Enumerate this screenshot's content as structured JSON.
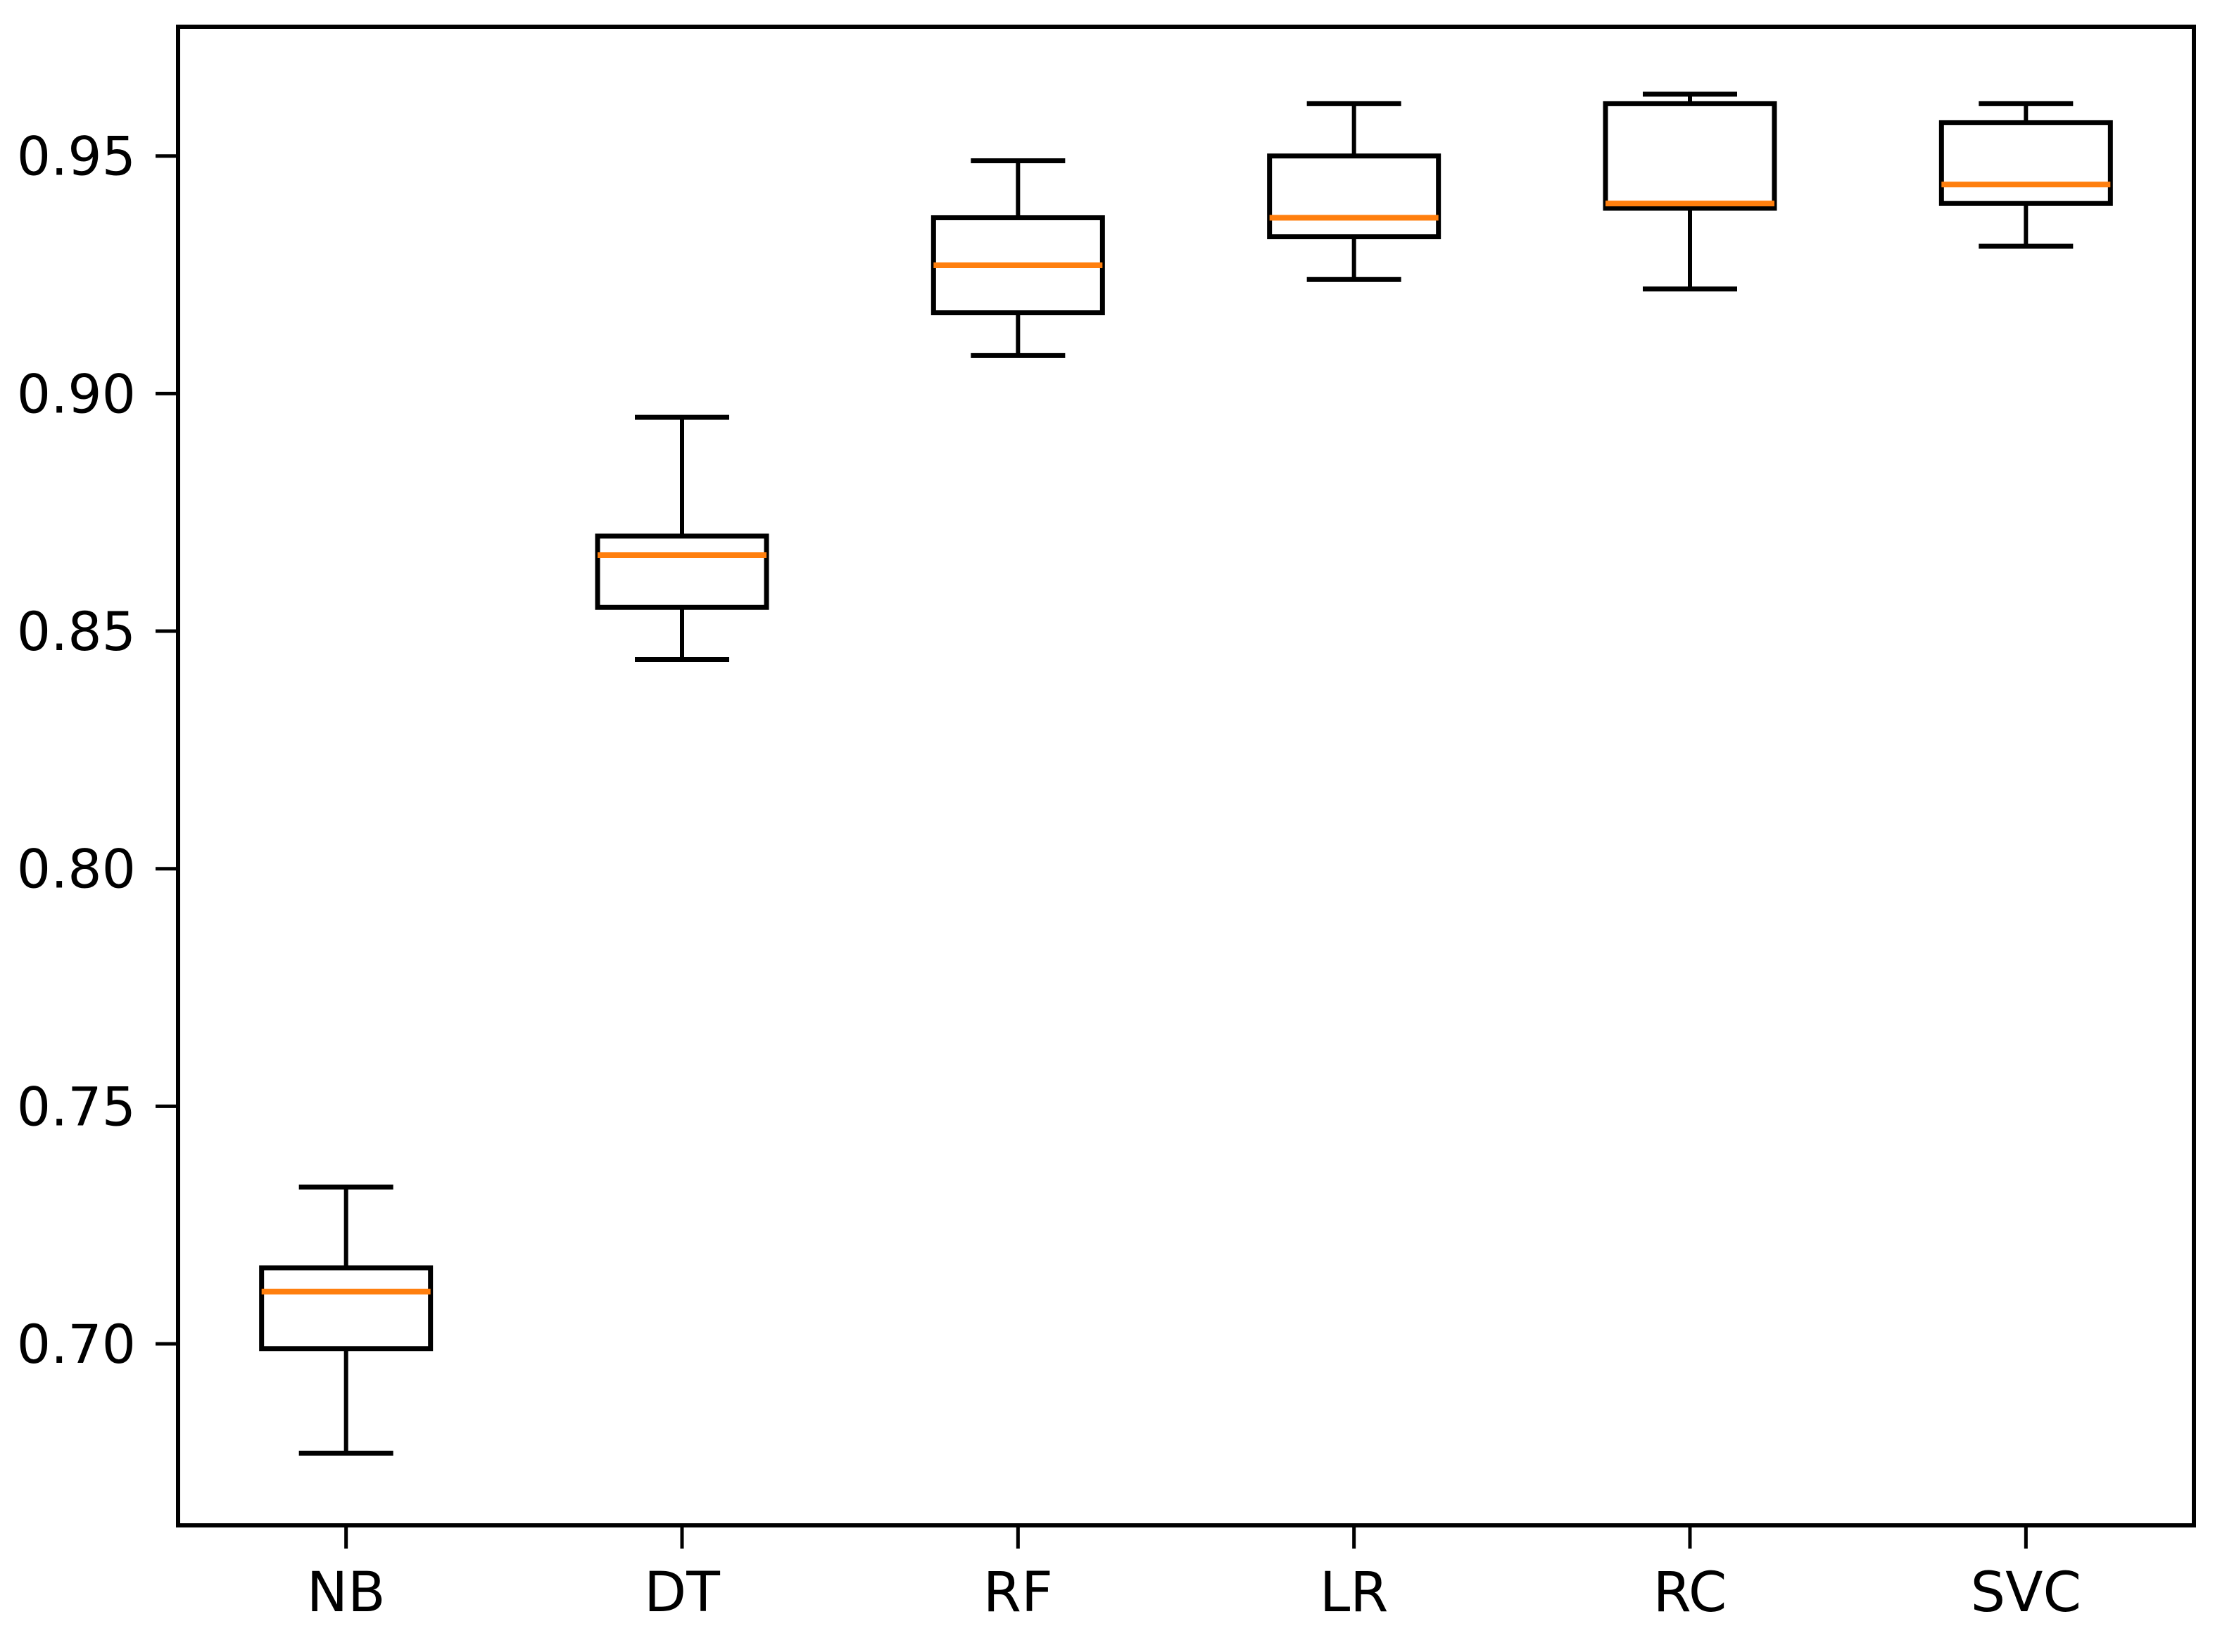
{
  "chart_data": {
    "type": "box",
    "title": "",
    "xlabel": "",
    "ylabel": "",
    "categories": [
      "NB",
      "DT",
      "RF",
      "LR",
      "RC",
      "SVC"
    ],
    "series": [
      {
        "label": "NB",
        "whislo": 0.677,
        "q1": 0.699,
        "med": 0.711,
        "q3": 0.716,
        "whishi": 0.733,
        "fliers": []
      },
      {
        "label": "DT",
        "whislo": 0.844,
        "q1": 0.855,
        "med": 0.866,
        "q3": 0.87,
        "whishi": 0.895,
        "fliers": []
      },
      {
        "label": "RF",
        "whislo": 0.908,
        "q1": 0.917,
        "med": 0.927,
        "q3": 0.937,
        "whishi": 0.949,
        "fliers": []
      },
      {
        "label": "LR",
        "whislo": 0.924,
        "q1": 0.933,
        "med": 0.937,
        "q3": 0.95,
        "whishi": 0.961,
        "fliers": []
      },
      {
        "label": "RC",
        "whislo": 0.922,
        "q1": 0.939,
        "med": 0.94,
        "q3": 0.961,
        "whishi": 0.963,
        "fliers": []
      },
      {
        "label": "SVC",
        "whislo": 0.931,
        "q1": 0.94,
        "med": 0.944,
        "q3": 0.957,
        "whishi": 0.961,
        "fliers": []
      }
    ],
    "yticks": [
      0.7,
      0.75,
      0.8,
      0.85,
      0.9,
      0.95
    ],
    "ytick_labels": [
      "0.70",
      "0.75",
      "0.80",
      "0.85",
      "0.90",
      "0.95"
    ],
    "ylim": [
      0.6618,
      0.9772
    ],
    "grid": false,
    "legend": null,
    "colors": {
      "median": "#ff7f0e",
      "box": "#000000",
      "whisker": "#000000",
      "axis": "#000000",
      "tick_text": "#000000",
      "background": "#ffffff"
    }
  }
}
